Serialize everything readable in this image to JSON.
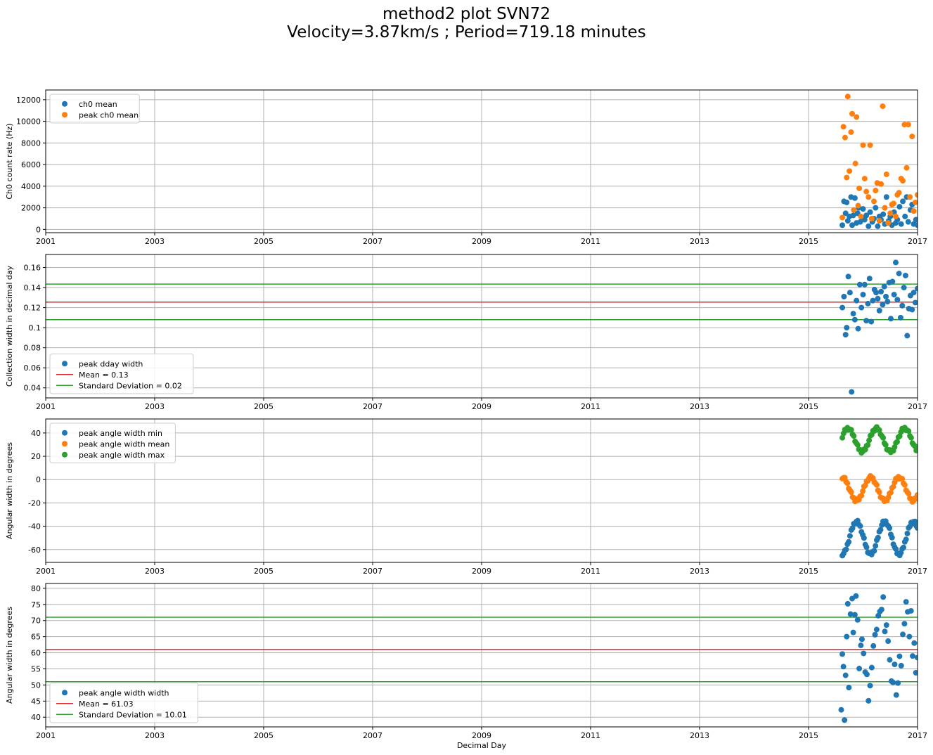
{
  "figure": {
    "title_line1": "method2 plot SVN72",
    "title_line2": "Velocity=3.87km/s ; Period=719.18 minutes"
  },
  "colors": {
    "blue": "#1f77b4",
    "orange": "#ff7f0e",
    "green": "#2ca02c",
    "red": "#d62728",
    "grid": "#b0b0b0"
  },
  "chart_data": [
    {
      "type": "scatter",
      "ylabel": "Ch0 count rate (Hz)",
      "xlabel": "",
      "xlim": [
        2001,
        2017
      ],
      "ylim": [
        -300,
        12900
      ],
      "xticks": [
        2001,
        2003,
        2005,
        2007,
        2009,
        2011,
        2013,
        2015,
        2017
      ],
      "yticks": [
        0,
        2000,
        4000,
        6000,
        8000,
        10000,
        12000
      ],
      "legend": "upper-left",
      "series": [
        {
          "name": "ch0 mean",
          "color": "#1f77b4",
          "kind": "points",
          "x": [
            2015.62,
            2015.65,
            2015.68,
            2015.7,
            2015.72,
            2015.75,
            2015.78,
            2015.8,
            2015.82,
            2015.85,
            2015.88,
            2015.9,
            2015.92,
            2015.95,
            2015.98,
            2016.0,
            2016.03,
            2016.06,
            2016.1,
            2016.13,
            2016.17,
            2016.2,
            2016.23,
            2016.27,
            2016.3,
            2016.33,
            2016.37,
            2016.4,
            2016.43,
            2016.47,
            2016.5,
            2016.53,
            2016.57,
            2016.6,
            2016.63,
            2016.67,
            2016.7,
            2016.73,
            2016.77,
            2016.8,
            2016.83,
            2016.87,
            2016.9,
            2016.93,
            2016.97,
            2017.0
          ],
          "y": [
            400,
            2600,
            1500,
            2500,
            800,
            1200,
            3000,
            400,
            1300,
            2900,
            600,
            1500,
            2000,
            700,
            1100,
            1900,
            900,
            1300,
            300,
            1600,
            700,
            1000,
            2000,
            300,
            1200,
            900,
            1400,
            500,
            3000,
            800,
            1200,
            400,
            1600,
            600,
            900,
            2100,
            500,
            2600,
            1200,
            3000,
            700,
            1800,
            2300,
            500,
            900,
            400
          ]
        },
        {
          "name": "peak ch0 mean",
          "color": "#ff7f0e",
          "kind": "points",
          "x": [
            2015.62,
            2015.64,
            2015.67,
            2015.7,
            2015.72,
            2015.75,
            2015.78,
            2015.8,
            2015.83,
            2015.86,
            2015.88,
            2015.91,
            2015.93,
            2015.96,
            2016.0,
            2016.03,
            2016.06,
            2016.1,
            2016.13,
            2016.16,
            2016.2,
            2016.23,
            2016.26,
            2016.3,
            2016.33,
            2016.36,
            2016.4,
            2016.43,
            2016.46,
            2016.5,
            2016.53,
            2016.56,
            2016.6,
            2016.63,
            2016.66,
            2016.7,
            2016.73,
            2016.76,
            2016.8,
            2016.83,
            2016.86,
            2016.9,
            2016.93,
            2016.96,
            2017.0
          ],
          "y": [
            1100,
            9500,
            8500,
            4800,
            12300,
            5400,
            9000,
            10700,
            1800,
            6100,
            10400,
            2200,
            3800,
            1200,
            7800,
            4700,
            3500,
            3000,
            7800,
            1000,
            2600,
            3600,
            4300,
            800,
            4200,
            11400,
            2000,
            5100,
            600,
            1500,
            2300,
            2400,
            1200,
            3200,
            3400,
            4700,
            4500,
            9700,
            5700,
            9700,
            3000,
            8600,
            1700,
            2500,
            3200
          ]
        }
      ]
    },
    {
      "type": "scatter",
      "ylabel": "Collection width in decimal day",
      "xlabel": "",
      "xlim": [
        2001,
        2017
      ],
      "ylim": [
        0.03,
        0.173
      ],
      "xticks": [
        2001,
        2003,
        2005,
        2007,
        2009,
        2011,
        2013,
        2015,
        2017
      ],
      "yticks": [
        0.04,
        0.06,
        0.08,
        0.1,
        0.12,
        0.14,
        0.16
      ],
      "legend": "lower-left",
      "series": [
        {
          "name": "peak dday width",
          "color": "#1f77b4",
          "kind": "points",
          "x": [
            2015.62,
            2015.65,
            2015.68,
            2015.7,
            2015.73,
            2015.76,
            2015.79,
            2015.82,
            2015.85,
            2015.88,
            2015.91,
            2015.94,
            2015.97,
            2016.0,
            2016.03,
            2016.06,
            2016.09,
            2016.12,
            2016.15,
            2016.18,
            2016.21,
            2016.24,
            2016.27,
            2016.3,
            2016.33,
            2016.36,
            2016.39,
            2016.42,
            2016.45,
            2016.48,
            2016.51,
            2016.54,
            2016.57,
            2016.6,
            2016.63,
            2016.66,
            2016.69,
            2016.72,
            2016.75,
            2016.78,
            2016.81,
            2016.84,
            2016.87,
            2016.9,
            2016.93,
            2016.96,
            2017.0
          ],
          "y": [
            0.12,
            0.131,
            0.093,
            0.1,
            0.151,
            0.135,
            0.036,
            0.114,
            0.108,
            0.127,
            0.099,
            0.143,
            0.12,
            0.133,
            0.143,
            0.107,
            0.124,
            0.149,
            0.106,
            0.127,
            0.138,
            0.135,
            0.129,
            0.117,
            0.136,
            0.123,
            0.141,
            0.131,
            0.126,
            0.145,
            0.109,
            0.146,
            0.133,
            0.165,
            0.128,
            0.154,
            0.11,
            0.122,
            0.14,
            0.152,
            0.092,
            0.119,
            0.132,
            0.118,
            0.135,
            0.125,
            0.139
          ]
        }
      ],
      "hlines": [
        {
          "name": "Mean = 0.13",
          "value": 0.1255,
          "color": "#d62728"
        },
        {
          "name": "Standard Deviation = 0.02",
          "value": 0.1435,
          "color": "#2ca02c",
          "in_legend": true
        },
        {
          "name": "",
          "value": 0.108,
          "color": "#2ca02c",
          "in_legend": false
        }
      ]
    },
    {
      "type": "scatter",
      "ylabel": "Angular width in degrees",
      "xlabel": "",
      "xlim": [
        2001,
        2017
      ],
      "ylim": [
        -71,
        52
      ],
      "xticks": [
        2001,
        2003,
        2005,
        2007,
        2009,
        2011,
        2013,
        2015,
        2017
      ],
      "yticks": [
        -60,
        -40,
        -20,
        0,
        20,
        40
      ],
      "legend": "upper-left",
      "series": [
        {
          "name": "peak angle width min",
          "color": "#1f77b4",
          "kind": "wave",
          "x0": 2015.62,
          "x1": 2017.0,
          "n": 60,
          "center": -50,
          "amp": 14,
          "period": 0.52,
          "phase": 0.75
        },
        {
          "name": "peak angle width mean",
          "color": "#ff7f0e",
          "kind": "wave",
          "x0": 2015.62,
          "x1": 2017.0,
          "n": 60,
          "center": -8,
          "amp": 10,
          "period": 0.52,
          "phase": 0.25
        },
        {
          "name": "peak angle width max",
          "color": "#2ca02c",
          "kind": "wave",
          "x0": 2015.62,
          "x1": 2017.0,
          "n": 60,
          "center": 34,
          "amp": 10,
          "period": 0.52,
          "phase": 0.05
        }
      ]
    },
    {
      "type": "scatter",
      "ylabel": "Angular width in degrees",
      "xlabel": "Decimal Day",
      "xlim": [
        2001,
        2017
      ],
      "ylim": [
        37,
        81.5
      ],
      "xticks": [
        2001,
        2003,
        2005,
        2007,
        2009,
        2011,
        2013,
        2015,
        2017
      ],
      "yticks": [
        40,
        45,
        50,
        55,
        60,
        65,
        70,
        75,
        80
      ],
      "legend": "lower-left",
      "series": [
        {
          "name": "peak angle width width",
          "color": "#1f77b4",
          "kind": "points",
          "x": [
            2015.6,
            2015.62,
            2015.64,
            2015.66,
            2015.68,
            2015.7,
            2015.72,
            2015.74,
            2015.77,
            2015.8,
            2015.82,
            2015.85,
            2015.87,
            2015.9,
            2015.93,
            2015.96,
            2015.98,
            2016.01,
            2016.04,
            2016.07,
            2016.1,
            2016.13,
            2016.16,
            2016.19,
            2016.22,
            2016.25,
            2016.28,
            2016.31,
            2016.34,
            2016.37,
            2016.4,
            2016.43,
            2016.46,
            2016.49,
            2016.52,
            2016.55,
            2016.58,
            2016.61,
            2016.64,
            2016.67,
            2016.7,
            2016.73,
            2016.76,
            2016.79,
            2016.82,
            2016.85,
            2016.88,
            2016.91,
            2016.94,
            2016.97,
            2017.0
          ],
          "y": [
            42.3,
            59.6,
            55.7,
            39.1,
            53,
            65,
            75.2,
            49.2,
            72,
            76.8,
            66.3,
            71.8,
            77.6,
            70.2,
            55.1,
            62.3,
            64.2,
            59.8,
            54,
            53.3,
            45.1,
            49.8,
            55.4,
            62.1,
            65.6,
            67.2,
            71.5,
            72.8,
            73.4,
            77.3,
            66.6,
            68.6,
            63.6,
            57.8,
            51.2,
            50.8,
            56.4,
            46.9,
            50.6,
            58.9,
            56,
            65.7,
            69,
            75.8,
            72.7,
            65,
            73,
            59,
            63,
            53.8,
            58.5
          ]
        }
      ],
      "hlines": [
        {
          "name": "Mean = 61.03",
          "value": 61.03,
          "color": "#d62728"
        },
        {
          "name": "Standard Deviation = 10.01",
          "value": 71.04,
          "color": "#2ca02c",
          "in_legend": true
        },
        {
          "name": "",
          "value": 51.02,
          "color": "#2ca02c",
          "in_legend": false
        }
      ]
    }
  ]
}
